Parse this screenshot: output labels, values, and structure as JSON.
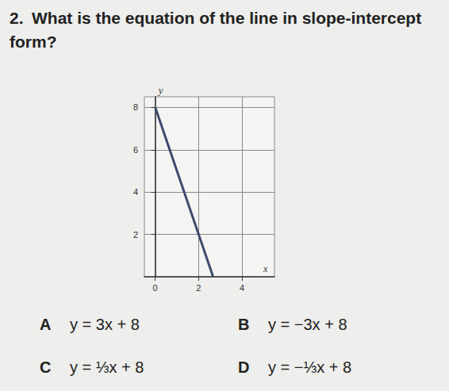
{
  "question": {
    "number": "2.",
    "text": "What is the equation of the line in slope-intercept form?"
  },
  "chart_data": {
    "type": "line",
    "x": [
      0,
      2.67
    ],
    "values": [
      8,
      0
    ],
    "xlim": [
      -0.5,
      5.5
    ],
    "ylim": [
      0,
      8.5
    ],
    "xticks": [
      0,
      2,
      4
    ],
    "yticks": [
      2,
      4,
      6,
      8
    ],
    "xlabel": "x",
    "ylabel": "y",
    "color": "#3c4a6e",
    "grid": true
  },
  "choices": [
    {
      "letter": "A",
      "text": "y = 3x + 8"
    },
    {
      "letter": "B",
      "text": "y = −3x + 8"
    },
    {
      "letter": "C",
      "text": "y = ⅓x + 8"
    },
    {
      "letter": "D",
      "text": "y = −⅓x + 8"
    }
  ]
}
